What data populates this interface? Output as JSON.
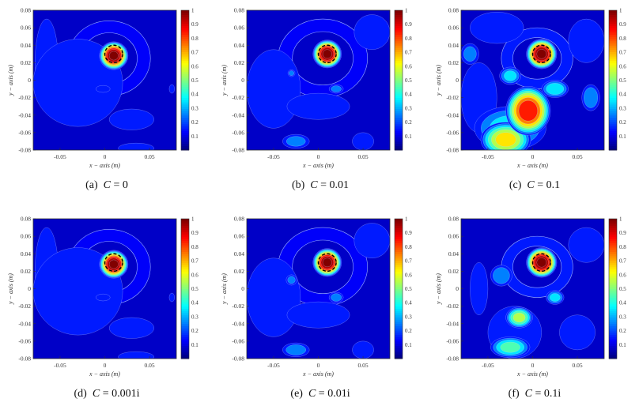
{
  "figure": {
    "xlabel": "x − axis (m)",
    "ylabel": "y − axis (m)",
    "xticks": [
      "-0.05",
      "0",
      "0.05"
    ],
    "xtick_values": [
      -0.05,
      0,
      0.05
    ],
    "yticks": [
      "0.08",
      "0.06",
      "0.04",
      "0.02",
      "0",
      "-0.02",
      "-0.04",
      "-0.06",
      "-0.08"
    ],
    "ytick_values": [
      0.08,
      0.06,
      0.04,
      0.02,
      0,
      -0.02,
      -0.04,
      -0.06,
      -0.08
    ],
    "colorbar_ticks": [
      "1",
      "0.9",
      "0.8",
      "0.7",
      "0.6",
      "0.5",
      "0.4",
      "0.3",
      "0.2",
      "0.1"
    ],
    "colorbar_values": [
      1,
      0.9,
      0.8,
      0.7,
      0.6,
      0.5,
      0.4,
      0.3,
      0.2,
      0.1
    ],
    "xlim": [
      -0.08,
      0.08
    ],
    "ylim": [
      -0.08,
      0.08
    ],
    "clim": [
      0,
      1
    ],
    "true_target": {
      "x": 0.01,
      "y": 0.03,
      "radius": 0.01
    }
  },
  "chart_data": [
    {
      "type": "heatmap",
      "label": "(a)",
      "caption_var": "C",
      "caption_value": "= 0",
      "spots": [
        [
          0.01,
          0.028,
          0.016,
          0.016,
          1.0
        ],
        [
          -0.065,
          0.02,
          0.013,
          0.05,
          0.12
        ],
        [
          -0.03,
          -0.003,
          0.05,
          0.05,
          0.12
        ],
        [
          0.03,
          -0.045,
          0.025,
          0.012,
          0.12
        ],
        [
          0.035,
          -0.078,
          0.02,
          0.006,
          0.12
        ],
        [
          -0.002,
          -0.01,
          0.008,
          0.004,
          0.15
        ],
        [
          0.075,
          -0.01,
          0.003,
          0.005,
          0.12
        ]
      ],
      "ring": [
        0.005,
        0.025,
        0.046,
        0.043,
        0.12
      ]
    },
    {
      "type": "heatmap",
      "label": "(b)",
      "caption_var": "C",
      "caption_value": "= 0.01",
      "spots": [
        [
          0.01,
          0.03,
          0.016,
          0.016,
          1.0
        ],
        [
          -0.05,
          -0.01,
          0.03,
          0.045,
          0.12
        ],
        [
          0.0,
          -0.03,
          0.035,
          0.015,
          0.12
        ],
        [
          -0.025,
          -0.07,
          0.015,
          0.008,
          0.2
        ],
        [
          0.05,
          -0.07,
          0.012,
          0.01,
          0.12
        ],
        [
          0.02,
          -0.01,
          0.008,
          0.005,
          0.2
        ],
        [
          -0.03,
          0.008,
          0.004,
          0.004,
          0.2
        ],
        [
          0.06,
          0.055,
          0.02,
          0.02,
          0.12
        ]
      ],
      "ring": [
        0.005,
        0.025,
        0.05,
        0.045,
        0.12
      ]
    },
    {
      "type": "heatmap",
      "label": "(c)",
      "caption_var": "C",
      "caption_value": "= 0.1",
      "spots": [
        [
          0.01,
          0.03,
          0.017,
          0.017,
          1.0
        ],
        [
          -0.005,
          -0.035,
          0.025,
          0.028,
          0.85
        ],
        [
          -0.03,
          -0.068,
          0.028,
          0.02,
          0.6
        ],
        [
          -0.025,
          -0.055,
          0.04,
          0.025,
          0.3
        ],
        [
          -0.025,
          0.005,
          0.012,
          0.01,
          0.3
        ],
        [
          0.025,
          -0.01,
          0.015,
          0.01,
          0.35
        ],
        [
          0.065,
          -0.02,
          0.01,
          0.015,
          0.25
        ],
        [
          -0.07,
          0.03,
          0.01,
          0.012,
          0.2
        ],
        [
          0.06,
          0.045,
          0.02,
          0.025,
          0.15
        ],
        [
          -0.06,
          -0.02,
          0.02,
          0.04,
          0.15
        ],
        [
          -0.04,
          0.06,
          0.03,
          0.018,
          0.12
        ]
      ],
      "ring": [
        0.005,
        0.025,
        0.04,
        0.035,
        0.15
      ]
    },
    {
      "type": "heatmap",
      "label": "(d)",
      "caption_var": "C",
      "caption_value": "= 0.001i",
      "spots": [
        [
          0.01,
          0.028,
          0.016,
          0.016,
          1.0
        ],
        [
          -0.065,
          0.02,
          0.013,
          0.05,
          0.12
        ],
        [
          -0.03,
          -0.003,
          0.05,
          0.05,
          0.12
        ],
        [
          0.03,
          -0.045,
          0.025,
          0.012,
          0.12
        ],
        [
          0.035,
          -0.078,
          0.02,
          0.006,
          0.12
        ],
        [
          -0.002,
          -0.01,
          0.008,
          0.004,
          0.15
        ],
        [
          0.075,
          -0.01,
          0.003,
          0.005,
          0.12
        ]
      ],
      "ring": [
        0.005,
        0.025,
        0.046,
        0.043,
        0.12
      ]
    },
    {
      "type": "heatmap",
      "label": "(e)",
      "caption_var": "C",
      "caption_value": "= 0.01i",
      "spots": [
        [
          0.01,
          0.03,
          0.016,
          0.016,
          1.0
        ],
        [
          -0.05,
          -0.01,
          0.03,
          0.045,
          0.12
        ],
        [
          0.0,
          -0.03,
          0.035,
          0.015,
          0.12
        ],
        [
          -0.025,
          -0.07,
          0.015,
          0.008,
          0.22
        ],
        [
          0.05,
          -0.07,
          0.012,
          0.01,
          0.12
        ],
        [
          0.02,
          -0.01,
          0.008,
          0.006,
          0.22
        ],
        [
          -0.03,
          0.01,
          0.006,
          0.006,
          0.2
        ],
        [
          0.06,
          0.055,
          0.02,
          0.02,
          0.12
        ]
      ],
      "ring": [
        0.005,
        0.025,
        0.05,
        0.045,
        0.12
      ]
    },
    {
      "type": "heatmap",
      "label": "(f)",
      "caption_var": "C",
      "caption_value": "= 0.1i",
      "spots": [
        [
          0.01,
          0.03,
          0.017,
          0.017,
          1.0
        ],
        [
          -0.015,
          -0.033,
          0.015,
          0.012,
          0.5
        ],
        [
          -0.025,
          -0.067,
          0.022,
          0.012,
          0.4
        ],
        [
          -0.02,
          -0.05,
          0.03,
          0.03,
          0.15
        ],
        [
          -0.035,
          0.015,
          0.012,
          0.012,
          0.25
        ],
        [
          0.025,
          -0.01,
          0.01,
          0.008,
          0.3
        ],
        [
          -0.06,
          0.0,
          0.01,
          0.03,
          0.15
        ],
        [
          0.06,
          0.05,
          0.02,
          0.02,
          0.15
        ],
        [
          0.05,
          -0.05,
          0.02,
          0.02,
          0.12
        ]
      ],
      "ring": [
        0.005,
        0.025,
        0.04,
        0.035,
        0.15
      ]
    }
  ]
}
